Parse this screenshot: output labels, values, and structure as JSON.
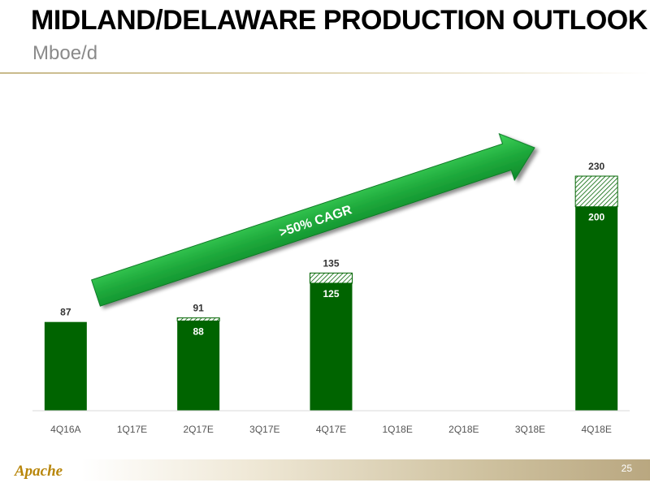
{
  "header": {
    "title": "MIDLAND/DELAWARE PRODUCTION OUTLOOK",
    "subtitle": "Mboe/d"
  },
  "chart_data": {
    "type": "bar",
    "stacked": true,
    "unit": "Mboe/d",
    "categories": [
      "4Q16A",
      "1Q17E",
      "2Q17E",
      "3Q17E",
      "4Q17E",
      "1Q18E",
      "2Q18E",
      "3Q18E",
      "4Q18E"
    ],
    "series": [
      {
        "values": [
          87,
          null,
          88,
          null,
          125,
          null,
          null,
          null,
          200
        ],
        "color": "#006400"
      },
      {
        "values": [
          0,
          null,
          3,
          null,
          10,
          null,
          null,
          null,
          30
        ],
        "pattern": "hatched"
      }
    ],
    "totals": [
      87,
      null,
      91,
      null,
      135,
      null,
      null,
      null,
      230
    ],
    "inner_labels": [
      null,
      null,
      "88",
      null,
      "125",
      null,
      null,
      null,
      "200"
    ],
    "total_labels": [
      "87",
      null,
      "91",
      null,
      "135",
      null,
      null,
      null,
      "230"
    ],
    "ylim": [
      0,
      260
    ],
    "grid": false,
    "annotation": {
      "text": ">50% CAGR",
      "color": "#1faa3c"
    }
  },
  "footer": {
    "logo_text": "Apache",
    "page_number": "25"
  }
}
